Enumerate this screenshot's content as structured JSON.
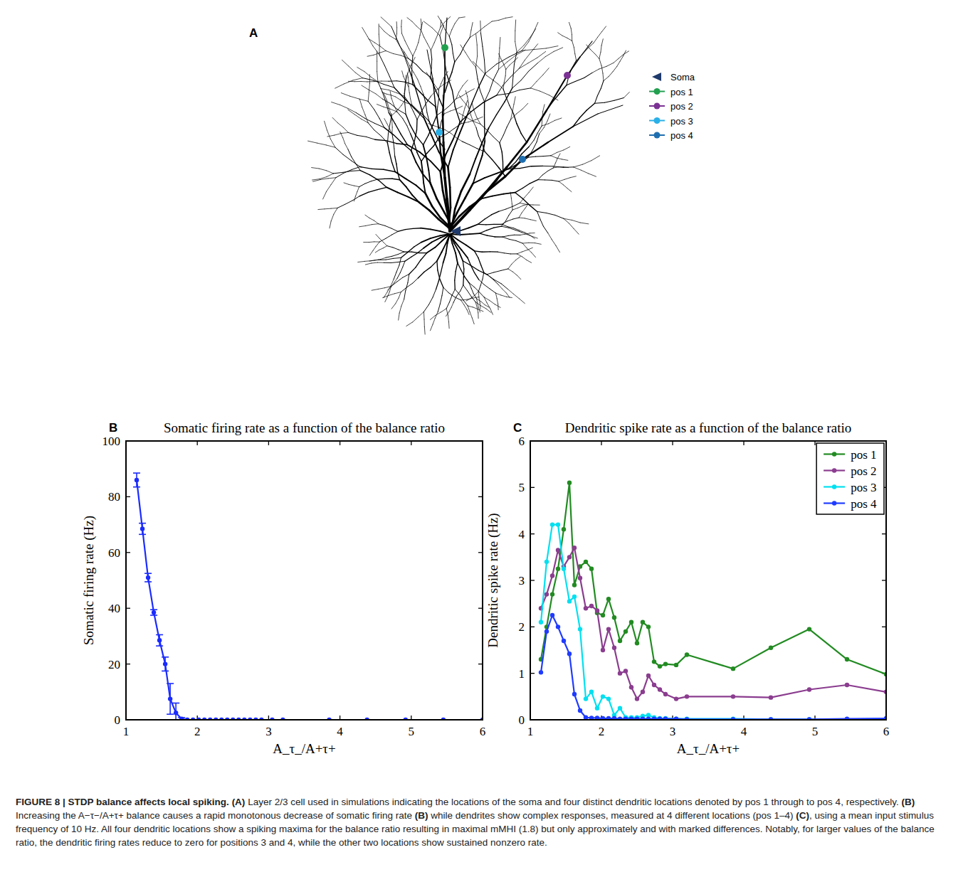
{
  "panel_a": {
    "letter": "A",
    "legend": [
      {
        "label": "Soma",
        "color": "#1f3a6b",
        "marker": "triangle"
      },
      {
        "label": "pos 1",
        "color": "#22a050",
        "marker": "circle"
      },
      {
        "label": "pos 2",
        "color": "#7b3294",
        "marker": "circle"
      },
      {
        "label": "pos 3",
        "color": "#2ab0e8",
        "marker": "circle"
      },
      {
        "label": "pos 4",
        "color": "#1f6fb0",
        "marker": "circle"
      }
    ]
  },
  "chart_letters": [
    "B",
    "C"
  ],
  "chart_data": [
    {
      "type": "line",
      "title": "Somatic firing rate as a function of the balance ratio",
      "x_label": "A_τ_/A+τ+",
      "y_label": "Somatic firing rate (Hz)",
      "x": [
        1.15,
        1.23,
        1.31,
        1.39,
        1.47,
        1.55,
        1.62,
        1.7,
        1.78,
        1.86,
        1.94,
        2.02,
        2.1,
        2.18,
        2.26,
        2.34,
        2.42,
        2.5,
        2.58,
        2.66,
        2.74,
        2.82,
        2.9,
        3.05,
        3.2,
        3.85,
        4.38,
        4.92,
        5.45,
        6.0
      ],
      "series": [
        {
          "color": "#1a2bff",
          "marker": "circle",
          "values": [
            86,
            68.5,
            51,
            38.5,
            28.5,
            20,
            7.5,
            2.5,
            0.3,
            0,
            0,
            0,
            0,
            0,
            0,
            0,
            0,
            0,
            0,
            0,
            0,
            0,
            0,
            0,
            0,
            0,
            0,
            0,
            0,
            0
          ],
          "errors": [
            2.5,
            2,
            1.5,
            1,
            2,
            2.5,
            5.5,
            3.5,
            0.5,
            0,
            0,
            0,
            0,
            0,
            0,
            0,
            0,
            0,
            0,
            0,
            0,
            0,
            0,
            0,
            0,
            0,
            0,
            0,
            0,
            0
          ]
        }
      ],
      "xlim": [
        1,
        6
      ],
      "xticks": [
        1,
        2,
        3,
        4,
        5,
        6
      ],
      "ylim": [
        0,
        100
      ],
      "yticks": [
        0,
        20,
        40,
        60,
        80,
        100
      ]
    },
    {
      "type": "line",
      "title": "Dendritic spike rate as a function of the balance ratio",
      "x_label": "A_τ_/A+τ+",
      "y_label": "Dendritic spike rate (Hz)",
      "x": [
        1.15,
        1.23,
        1.31,
        1.39,
        1.47,
        1.55,
        1.62,
        1.7,
        1.78,
        1.86,
        1.94,
        2.02,
        2.1,
        2.18,
        2.26,
        2.34,
        2.42,
        2.5,
        2.58,
        2.66,
        2.74,
        2.82,
        2.9,
        3.05,
        3.2,
        3.85,
        4.38,
        4.92,
        5.45,
        6.0
      ],
      "series": [
        {
          "name": "pos 1",
          "color": "#228b22",
          "marker": "circle",
          "values": [
            1.3,
            2.0,
            2.7,
            3.25,
            4.1,
            5.1,
            2.9,
            3.3,
            3.4,
            3.25,
            2.3,
            2.25,
            2.6,
            2.2,
            1.7,
            1.9,
            2.1,
            1.65,
            2.1,
            2.0,
            1.25,
            1.15,
            1.2,
            1.18,
            1.4,
            1.1,
            1.55,
            1.95,
            1.3,
            0.98
          ]
        },
        {
          "name": "pos 2",
          "color": "#8b3d8f",
          "marker": "circle",
          "values": [
            2.4,
            2.7,
            3.1,
            3.65,
            3.3,
            3.5,
            3.7,
            3.05,
            2.4,
            2.45,
            2.35,
            1.5,
            1.95,
            1.55,
            1.0,
            1.05,
            0.7,
            0.45,
            0.6,
            0.95,
            0.75,
            0.65,
            0.55,
            0.45,
            0.5,
            0.5,
            0.48,
            0.65,
            0.75,
            0.6
          ]
        },
        {
          "name": "pos 3",
          "color": "#00e0f0",
          "marker": "circle",
          "values": [
            2.1,
            3.4,
            4.2,
            4.2,
            3.25,
            2.55,
            2.65,
            1.95,
            0.45,
            0.6,
            0.25,
            0.5,
            0.45,
            0.1,
            0.25,
            0.05,
            0.05,
            0.05,
            0.08,
            0.1,
            0.05,
            0.03,
            0.03,
            0.02,
            0.02,
            0.02,
            0.01,
            0.01,
            0.01,
            0.02
          ]
        },
        {
          "name": "pos 4",
          "color": "#1f3bff",
          "marker": "circle",
          "values": [
            1.02,
            1.9,
            2.25,
            2.0,
            1.7,
            1.42,
            0.55,
            0.2,
            0.05,
            0.04,
            0.04,
            0.03,
            0.03,
            0.03,
            0.02,
            0.02,
            0.02,
            0.02,
            0.02,
            0.02,
            0.02,
            0.02,
            0.02,
            0.02,
            0.01,
            0.01,
            0.01,
            0.01,
            0.02,
            0.03
          ]
        }
      ],
      "legend": "upper right",
      "xlim": [
        1,
        6
      ],
      "xticks": [
        1,
        2,
        3,
        4,
        5,
        6
      ],
      "ylim": [
        0,
        6
      ],
      "yticks": [
        0,
        1,
        2,
        3,
        4,
        5,
        6
      ]
    }
  ],
  "caption": [
    {
      "text": "FIGURE 8 | STDP balance affects local spiking. ",
      "bold": true
    },
    {
      "text": "(A)",
      "bold": true
    },
    {
      "text": " Layer 2/3 cell used in simulations indicating the locations of the soma and four distinct dendritic locations denoted by pos 1 through to pos 4, respectively. ",
      "bold": false
    },
    {
      "text": "(B)",
      "bold": true
    },
    {
      "text": " Increasing the A−τ−/A+τ+ balance causes a rapid monotonous decrease of somatic firing rate ",
      "bold": false
    },
    {
      "text": "(B)",
      "bold": true
    },
    {
      "text": " while dendrites show complex responses, measured at 4 different locations (pos 1–4) ",
      "bold": false
    },
    {
      "text": "(C)",
      "bold": true
    },
    {
      "text": ", using a mean input stimulus frequency of 10 Hz. All four dendritic locations show a spiking maxima for the balance ratio resulting in maximal mMHI (1.8) but only approximately and with marked differences. Notably, for larger values of the balance ratio, the dendritic firing rates reduce to zero for positions 3 and 4, while the other two locations show sustained nonzero rate.",
      "bold": false
    }
  ]
}
